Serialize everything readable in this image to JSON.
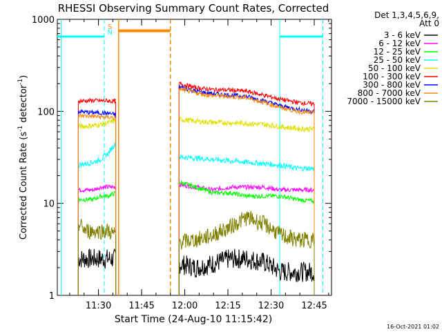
{
  "chart_data": {
    "type": "line",
    "title": "RHESSI Observing Summary Count Rates, Corrected",
    "xlabel": "Start Time (24-Aug-10 11:15:42)",
    "ylabel": "Corrected Count Rate (s⁻¹ detector⁻¹)",
    "ylabel_parts": {
      "main": "Corrected Count Rate (s",
      "sup1": "-1",
      "mid": " detector",
      "sup2": "-1",
      "end": ")"
    },
    "y_scale": "log",
    "ylim": [
      1,
      1000
    ],
    "xlim_minutes": [
      "11:15:42",
      "12:51:00"
    ],
    "x_ticks": [
      "11:30",
      "11:45",
      "12:00",
      "12:15",
      "12:30",
      "12:45"
    ],
    "y_ticks": [
      "1",
      "10",
      "100",
      "1000"
    ],
    "legend_header": [
      "Det 1,3,4,5,6,9,",
      "Att 0"
    ],
    "timestamp": "16-Oct-2021 01:02",
    "flag_labels": [
      "S",
      "N"
    ],
    "series": [
      {
        "name": "3 - 6 keV",
        "color": "#000000",
        "segments": [
          {
            "start": "11:23",
            "end": "11:36",
            "values": [
              2.5,
              2.5,
              2.5,
              2.5,
              2.5,
              2.5
            ]
          },
          {
            "start": "11:58",
            "end": "12:45",
            "values": [
              2.2,
              2.0,
              2.2,
              2.5,
              2.5,
              2.3,
              1.8,
              1.8,
              1.8
            ]
          }
        ]
      },
      {
        "name": "6 - 12 keV",
        "color": "#ff00ff",
        "segments": [
          {
            "start": "11:23",
            "end": "11:36",
            "values": [
              14,
              14,
              14,
              15,
              15,
              15
            ]
          },
          {
            "start": "11:58",
            "end": "12:45",
            "values": [
              16,
              15,
              14,
              15,
              15,
              15,
              14,
              14,
              14
            ]
          }
        ]
      },
      {
        "name": "12 - 25 keV",
        "color": "#00ff00",
        "segments": [
          {
            "start": "11:23",
            "end": "11:36",
            "values": [
              11,
              11,
              11,
              12,
              12,
              13
            ]
          },
          {
            "start": "11:58",
            "end": "12:45",
            "values": [
              17,
              15,
              13,
              13,
              12,
              12,
              12,
              11,
              10.5
            ]
          }
        ]
      },
      {
        "name": "25 - 50 keV",
        "color": "#00ffff",
        "segments": [
          {
            "start": "11:23",
            "end": "11:36",
            "values": [
              26,
              27,
              28,
              30,
              35,
              45
            ]
          },
          {
            "start": "11:58",
            "end": "12:45",
            "values": [
              32,
              31,
              30,
              29,
              28,
              27,
              26,
              24,
              24
            ]
          }
        ]
      },
      {
        "name": "50 - 100 keV",
        "color": "#e0e000",
        "segments": [
          {
            "start": "11:23",
            "end": "11:36",
            "values": [
              68,
              69,
              70,
              72,
              75,
              80
            ]
          },
          {
            "start": "11:58",
            "end": "12:45",
            "values": [
              82,
              78,
              76,
              75,
              74,
              72,
              68,
              65,
              64
            ]
          }
        ]
      },
      {
        "name": "100 - 300 keV",
        "color": "#ff0000",
        "segments": [
          {
            "start": "11:23",
            "end": "11:36",
            "values": [
              130,
              130,
              131,
              130,
              130,
              128
            ]
          },
          {
            "start": "11:58",
            "end": "12:45",
            "values": [
              200,
              180,
              172,
              170,
              165,
              150,
              135,
              125,
              120
            ]
          }
        ]
      },
      {
        "name": "300 - 800 keV",
        "color": "#0000ff",
        "segments": [
          {
            "start": "11:23",
            "end": "11:36",
            "values": [
              100,
              98,
              97,
              96,
              95,
              92
            ]
          },
          {
            "start": "11:58",
            "end": "12:45",
            "values": [
              185,
              165,
              155,
              150,
              145,
              130,
              115,
              105,
              100
            ]
          }
        ]
      },
      {
        "name": "800 - 7000 keV",
        "color": "#ff8800",
        "segments": [
          {
            "start": "11:23",
            "end": "11:36",
            "values": [
              90,
              89,
              88,
              87,
              86,
              85
            ]
          },
          {
            "start": "11:58",
            "end": "12:45",
            "values": [
              175,
              158,
              148,
              145,
              140,
              125,
              110,
              100,
              95
            ]
          }
        ]
      },
      {
        "name": "7000 - 15000 keV",
        "color": "#808000",
        "segments": [
          {
            "start": "11:23",
            "end": "11:36",
            "values": [
              6,
              5,
              5,
              5,
              5,
              4.5
            ]
          },
          {
            "start": "11:58",
            "end": "12:45",
            "values": [
              3.8,
              4,
              4.5,
              5.5,
              7,
              6,
              4.5,
              4,
              4
            ]
          }
        ]
      }
    ],
    "markers": [
      {
        "kind": "saa_or_night",
        "color": "#00ffff",
        "style": "solid",
        "x": "11:17",
        "y": 650
      },
      {
        "kind": "saa_or_night",
        "color": "#00ffff",
        "style": "dashed",
        "x": "11:32",
        "y": 650
      },
      {
        "kind": "flare",
        "color": "#ff8800",
        "style": "solid",
        "x": "11:37"
      },
      {
        "kind": "flare",
        "color": "#ff8800",
        "style": "dashed",
        "x": "11:55"
      },
      {
        "kind": "saa_or_night",
        "color": "#00ffff",
        "style": "solid",
        "x": "12:33",
        "y": 650
      },
      {
        "kind": "saa_or_night",
        "color": "#00ffff",
        "style": "dashed",
        "x": "12:48",
        "y": 650
      }
    ]
  }
}
